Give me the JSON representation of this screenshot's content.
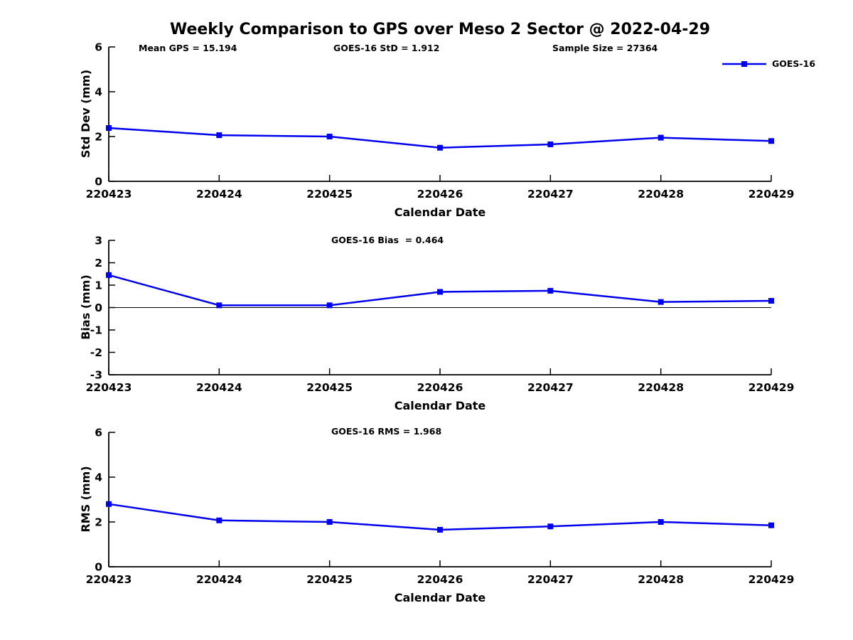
{
  "header": {
    "title": "Weekly Comparison to GPS over Meso 2 Sector @ 2022-04-29",
    "stats": {
      "mean_gps": "Mean GPS = 15.194",
      "goes16_std": "GOES-16 StD = 1.912",
      "sample_size": "Sample Size = 27364"
    }
  },
  "legend": {
    "label": "GOES-16",
    "position": "top-right",
    "marker": "square",
    "line_color": "#0000EE"
  },
  "colors": {
    "series": "#0000EE",
    "axis": "#000000",
    "zero_line": "#000000",
    "background": "#FFFFFF",
    "text": "#000000"
  },
  "chart_data": [
    {
      "type": "line",
      "name": "std-dev-subplot",
      "x": [
        "220423",
        "220424",
        "220425",
        "220426",
        "220427",
        "220428",
        "220429"
      ],
      "series": [
        {
          "name": "GOES-16",
          "values": [
            2.38,
            2.06,
            2.0,
            1.5,
            1.65,
            1.95,
            1.8
          ],
          "color": "#0000EE",
          "marker": "square"
        }
      ],
      "xlabel": "Calendar Date",
      "ylabel": "Std Dev (mm)",
      "ylim": [
        0,
        6
      ],
      "yticks": [
        0,
        2,
        4,
        6
      ],
      "grid": false,
      "zero_line": false,
      "annotation": ""
    },
    {
      "type": "line",
      "name": "bias-subplot",
      "x": [
        "220423",
        "220424",
        "220425",
        "220426",
        "220427",
        "220428",
        "220429"
      ],
      "series": [
        {
          "name": "GOES-16",
          "values": [
            1.45,
            0.1,
            0.1,
            0.7,
            0.75,
            0.25,
            0.3
          ],
          "color": "#0000EE",
          "marker": "square"
        }
      ],
      "xlabel": "Calendar Date",
      "ylabel": "Bias (mm)",
      "ylim": [
        -3,
        3
      ],
      "yticks": [
        -3,
        -2,
        -1,
        0,
        1,
        2,
        3
      ],
      "grid": false,
      "zero_line": true,
      "annotation": "GOES-16 Bias  = 0.464"
    },
    {
      "type": "line",
      "name": "rms-subplot",
      "x": [
        "220423",
        "220424",
        "220425",
        "220426",
        "220427",
        "220428",
        "220429"
      ],
      "series": [
        {
          "name": "GOES-16",
          "values": [
            2.8,
            2.07,
            2.0,
            1.65,
            1.8,
            2.0,
            1.85
          ],
          "color": "#0000EE",
          "marker": "square"
        }
      ],
      "xlabel": "Calendar Date",
      "ylabel": "RMS (mm)",
      "ylim": [
        0,
        6
      ],
      "yticks": [
        0,
        2,
        4,
        6
      ],
      "grid": false,
      "zero_line": false,
      "annotation": "GOES-16 RMS = 1.968"
    }
  ]
}
